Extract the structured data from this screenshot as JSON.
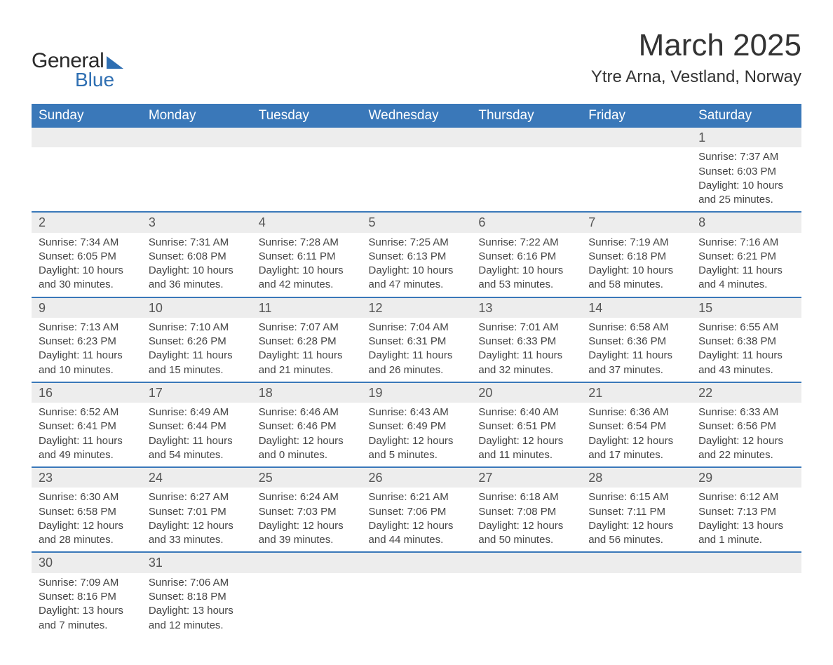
{
  "logo": {
    "text_general": "General",
    "text_blue": "Blue"
  },
  "title": "March 2025",
  "location": "Ytre Arna, Vestland, Norway",
  "colors": {
    "header_bg": "#3a78b9",
    "header_text": "#ffffff",
    "daynum_bg": "#ededed",
    "row_border": "#3a78b9",
    "text": "#444444",
    "logo_accent": "#2f6fb2"
  },
  "labels": {
    "sunrise": "Sunrise:",
    "sunset": "Sunset:",
    "daylight": "Daylight:"
  },
  "weekdays": [
    "Sunday",
    "Monday",
    "Tuesday",
    "Wednesday",
    "Thursday",
    "Friday",
    "Saturday"
  ],
  "weeks": [
    [
      null,
      null,
      null,
      null,
      null,
      null,
      {
        "d": "1",
        "sr": "7:37 AM",
        "ss": "6:03 PM",
        "dl": "10 hours and 25 minutes."
      }
    ],
    [
      {
        "d": "2",
        "sr": "7:34 AM",
        "ss": "6:05 PM",
        "dl": "10 hours and 30 minutes."
      },
      {
        "d": "3",
        "sr": "7:31 AM",
        "ss": "6:08 PM",
        "dl": "10 hours and 36 minutes."
      },
      {
        "d": "4",
        "sr": "7:28 AM",
        "ss": "6:11 PM",
        "dl": "10 hours and 42 minutes."
      },
      {
        "d": "5",
        "sr": "7:25 AM",
        "ss": "6:13 PM",
        "dl": "10 hours and 47 minutes."
      },
      {
        "d": "6",
        "sr": "7:22 AM",
        "ss": "6:16 PM",
        "dl": "10 hours and 53 minutes."
      },
      {
        "d": "7",
        "sr": "7:19 AM",
        "ss": "6:18 PM",
        "dl": "10 hours and 58 minutes."
      },
      {
        "d": "8",
        "sr": "7:16 AM",
        "ss": "6:21 PM",
        "dl": "11 hours and 4 minutes."
      }
    ],
    [
      {
        "d": "9",
        "sr": "7:13 AM",
        "ss": "6:23 PM",
        "dl": "11 hours and 10 minutes."
      },
      {
        "d": "10",
        "sr": "7:10 AM",
        "ss": "6:26 PM",
        "dl": "11 hours and 15 minutes."
      },
      {
        "d": "11",
        "sr": "7:07 AM",
        "ss": "6:28 PM",
        "dl": "11 hours and 21 minutes."
      },
      {
        "d": "12",
        "sr": "7:04 AM",
        "ss": "6:31 PM",
        "dl": "11 hours and 26 minutes."
      },
      {
        "d": "13",
        "sr": "7:01 AM",
        "ss": "6:33 PM",
        "dl": "11 hours and 32 minutes."
      },
      {
        "d": "14",
        "sr": "6:58 AM",
        "ss": "6:36 PM",
        "dl": "11 hours and 37 minutes."
      },
      {
        "d": "15",
        "sr": "6:55 AM",
        "ss": "6:38 PM",
        "dl": "11 hours and 43 minutes."
      }
    ],
    [
      {
        "d": "16",
        "sr": "6:52 AM",
        "ss": "6:41 PM",
        "dl": "11 hours and 49 minutes."
      },
      {
        "d": "17",
        "sr": "6:49 AM",
        "ss": "6:44 PM",
        "dl": "11 hours and 54 minutes."
      },
      {
        "d": "18",
        "sr": "6:46 AM",
        "ss": "6:46 PM",
        "dl": "12 hours and 0 minutes."
      },
      {
        "d": "19",
        "sr": "6:43 AM",
        "ss": "6:49 PM",
        "dl": "12 hours and 5 minutes."
      },
      {
        "d": "20",
        "sr": "6:40 AM",
        "ss": "6:51 PM",
        "dl": "12 hours and 11 minutes."
      },
      {
        "d": "21",
        "sr": "6:36 AM",
        "ss": "6:54 PM",
        "dl": "12 hours and 17 minutes."
      },
      {
        "d": "22",
        "sr": "6:33 AM",
        "ss": "6:56 PM",
        "dl": "12 hours and 22 minutes."
      }
    ],
    [
      {
        "d": "23",
        "sr": "6:30 AM",
        "ss": "6:58 PM",
        "dl": "12 hours and 28 minutes."
      },
      {
        "d": "24",
        "sr": "6:27 AM",
        "ss": "7:01 PM",
        "dl": "12 hours and 33 minutes."
      },
      {
        "d": "25",
        "sr": "6:24 AM",
        "ss": "7:03 PM",
        "dl": "12 hours and 39 minutes."
      },
      {
        "d": "26",
        "sr": "6:21 AM",
        "ss": "7:06 PM",
        "dl": "12 hours and 44 minutes."
      },
      {
        "d": "27",
        "sr": "6:18 AM",
        "ss": "7:08 PM",
        "dl": "12 hours and 50 minutes."
      },
      {
        "d": "28",
        "sr": "6:15 AM",
        "ss": "7:11 PM",
        "dl": "12 hours and 56 minutes."
      },
      {
        "d": "29",
        "sr": "6:12 AM",
        "ss": "7:13 PM",
        "dl": "13 hours and 1 minute."
      }
    ],
    [
      {
        "d": "30",
        "sr": "7:09 AM",
        "ss": "8:16 PM",
        "dl": "13 hours and 7 minutes."
      },
      {
        "d": "31",
        "sr": "7:06 AM",
        "ss": "8:18 PM",
        "dl": "13 hours and 12 minutes."
      },
      null,
      null,
      null,
      null,
      null
    ]
  ]
}
